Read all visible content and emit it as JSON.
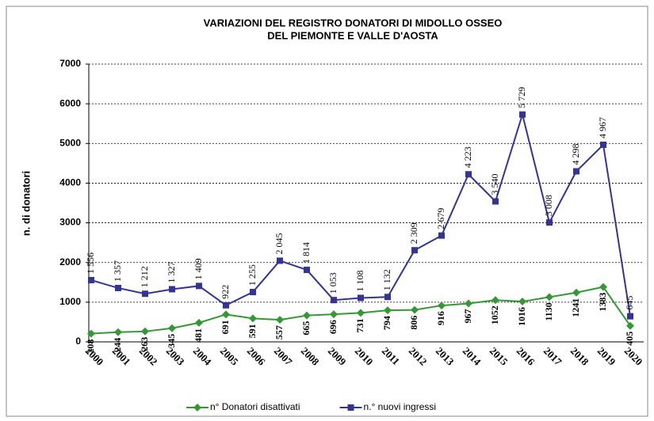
{
  "chart_data": {
    "type": "line",
    "title": "VARIAZIONI  DEL REGISTRO DONATORI DI MIDOLLO OSSEO",
    "subtitle": "DEL PIEMONTE E VALLE D'AOSTA",
    "y_label": "n. di donatori",
    "categories": [
      "2000",
      "2001",
      "2002",
      "2003",
      "2004",
      "2005",
      "2006",
      "2007",
      "2008",
      "2009",
      "2010",
      "2011",
      "2012",
      "2013",
      "2014",
      "2015",
      "2016",
      "2017",
      "2018",
      "2019",
      "2020"
    ],
    "series": [
      {
        "name": "n° Donatori disattivati",
        "color": "#339933",
        "marker": "diamond",
        "values": [
          208,
          244,
          263,
          345,
          481,
          691,
          591,
          557,
          665,
          696,
          731,
          794,
          806,
          916,
          967,
          1052,
          1016,
          1130,
          1241,
          1383,
          405
        ]
      },
      {
        "name": "n.° nuovi ingressi",
        "color": "#333399",
        "marker": "square",
        "values": [
          1556,
          1357,
          1212,
          1327,
          1409,
          922,
          1255,
          2045,
          1814,
          1053,
          1108,
          1132,
          2309,
          2679,
          4223,
          3540,
          5729,
          3008,
          4298,
          4967,
          645
        ],
        "value_labels": [
          "1 556",
          "1 357",
          "1 212",
          "1 327",
          "1 409",
          "922",
          "1 255",
          "2 045",
          "1 814",
          "1 053",
          "1 108",
          "1 132",
          "2 309",
          "2 679",
          "4 223",
          "3 540",
          "5 729",
          "3 008",
          "4 298",
          "4 967",
          "645"
        ]
      }
    ],
    "ylim": [
      0,
      7000
    ],
    "yticks": [
      0,
      1000,
      2000,
      3000,
      4000,
      5000,
      6000,
      7000
    ],
    "grid": true,
    "legend": "bottom"
  }
}
